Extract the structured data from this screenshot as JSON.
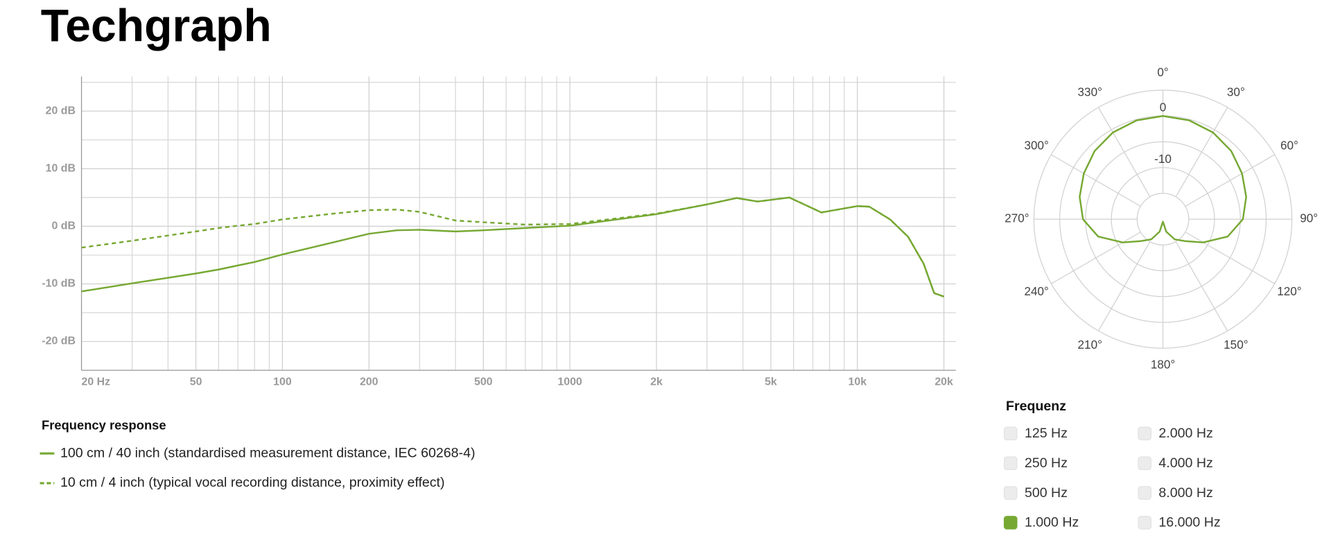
{
  "title": "Techgraph",
  "chart_data": [
    {
      "type": "line",
      "legend_title": "Frequency response",
      "log_x": true,
      "grid": true,
      "x": [
        20,
        30,
        50,
        60,
        70,
        80,
        100,
        150,
        200,
        250,
        300,
        400,
        500,
        700,
        1000,
        2000,
        3000,
        3800,
        4500,
        5800,
        7500,
        10000,
        11000,
        13000,
        15000,
        17000,
        18500,
        20000
      ],
      "series": [
        {
          "name": "100 cm / 40 inch (standardised measurement distance, IEC 60268-4)",
          "color": "#76a832",
          "dashed": false,
          "values": [
            -11.3,
            -9.9,
            -8.2,
            -7.5,
            -6.8,
            -6.2,
            -4.9,
            -2.8,
            -1.3,
            -0.7,
            -0.6,
            -0.9,
            -0.7,
            -0.3,
            0.1,
            2.1,
            3.8,
            4.9,
            4.3,
            5.0,
            2.4,
            3.5,
            3.4,
            1.2,
            -1.8,
            -6.5,
            -11.6,
            -12.2
          ]
        },
        {
          "name": "10 cm / 4 inch (typical vocal recording distance, proximity effect)",
          "color": "#76a832",
          "dashed": true,
          "values": [
            -3.7,
            -2.5,
            -0.9,
            -0.3,
            0.1,
            0.4,
            1.2,
            2.2,
            2.8,
            2.9,
            2.5,
            1.0,
            0.7,
            0.3,
            0.4,
            2.2,
            3.8,
            4.9,
            4.3,
            5.0,
            2.4,
            3.5,
            3.4,
            1.2,
            -1.8,
            -6.5,
            -11.6,
            -12.2
          ]
        }
      ],
      "xlim": [
        20,
        22000
      ],
      "xticks": [
        {
          "value": 20,
          "label": "20 Hz"
        },
        50,
        100,
        200,
        500,
        1000,
        {
          "value": 2000,
          "label": "2k"
        },
        {
          "value": 5000,
          "label": "5k"
        },
        {
          "value": 10000,
          "label": "10k"
        },
        {
          "value": 20000,
          "label": "20k"
        }
      ],
      "minor_xticks": [
        30,
        40,
        60,
        70,
        80,
        90,
        300,
        400,
        600,
        700,
        800,
        900,
        3000,
        4000,
        6000,
        7000,
        8000,
        9000
      ],
      "ylim": [
        -25,
        26
      ],
      "yticks": [
        {
          "value": -20,
          "label": "-20 dB"
        },
        {
          "value": -10,
          "label": "-10 dB"
        },
        {
          "value": 0,
          "label": "0 dB"
        },
        {
          "value": 10,
          "label": "10 dB"
        },
        {
          "value": 20,
          "label": "20 dB"
        }
      ],
      "minor_yticks": [
        -25,
        -15,
        -5,
        5,
        15,
        25
      ]
    },
    {
      "type": "polar",
      "color": "#76a832",
      "angles": [
        0,
        15,
        30,
        45,
        60,
        75,
        90,
        105,
        120,
        135,
        150,
        165,
        180,
        195,
        210,
        225,
        240,
        255,
        270,
        285,
        300,
        315,
        330,
        345
      ],
      "values": [
        0,
        -0.2,
        -0.6,
        -1.3,
        -2.3,
        -3.3,
        -4.5,
        -7,
        -11,
        -14,
        -15.5,
        -17.5,
        -19.5,
        -17.5,
        -15.5,
        -14,
        -11,
        -7,
        -4.5,
        -3.3,
        -2.3,
        -1.3,
        -0.6,
        -0.2
      ],
      "rlim": [
        -20,
        5
      ],
      "rticks": [
        0,
        -10
      ],
      "minor_rticks": [
        -15,
        -5,
        5
      ],
      "angle_ticks": [
        {
          "value": 0,
          "label": "0°"
        },
        {
          "value": 30,
          "label": "30°"
        },
        {
          "value": 60,
          "label": "60°"
        },
        {
          "value": 90,
          "label": "90°"
        },
        {
          "value": 120,
          "label": "120°"
        },
        {
          "value": 150,
          "label": "150°"
        },
        {
          "value": 180,
          "label": "180°"
        },
        {
          "value": 210,
          "label": "210°"
        },
        {
          "value": 240,
          "label": "240°"
        },
        {
          "value": 270,
          "label": "270°"
        },
        {
          "value": 300,
          "label": "300°"
        },
        {
          "value": 330,
          "label": "330°"
        }
      ]
    }
  ],
  "frequency_selector": {
    "title": "Frequenz",
    "options": [
      {
        "label": "125 Hz",
        "checked": false
      },
      {
        "label": "250 Hz",
        "checked": false
      },
      {
        "label": "500 Hz",
        "checked": false
      },
      {
        "label": "1.000 Hz",
        "checked": true
      },
      {
        "label": "2.000 Hz",
        "checked": false
      },
      {
        "label": "4.000 Hz",
        "checked": false
      },
      {
        "label": "8.000 Hz",
        "checked": false
      },
      {
        "label": "16.000 Hz",
        "checked": false
      }
    ]
  }
}
